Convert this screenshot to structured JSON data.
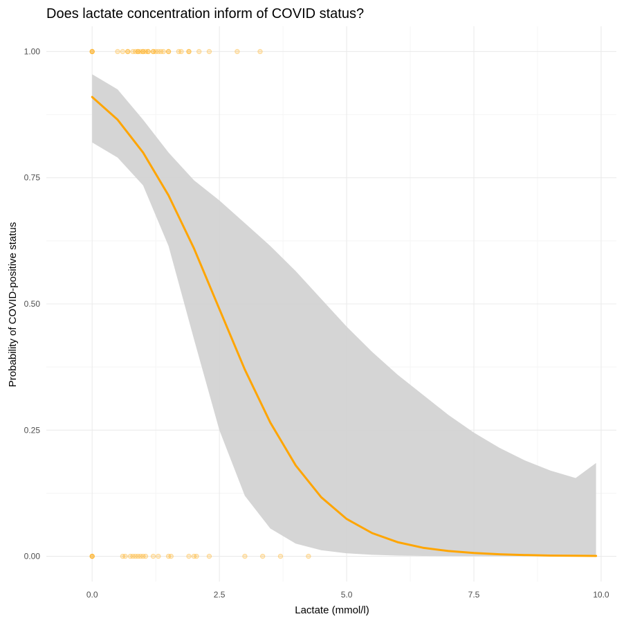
{
  "chart_data": {
    "type": "scatter",
    "title": "Does lactate concentration inform of COVID status?",
    "xlabel": "Lactate (mmol/l)",
    "ylabel": "Probability of COVID-positive status",
    "xlim": [
      -0.9,
      10.3
    ],
    "ylim": [
      -0.05,
      1.05
    ],
    "x_ticks": [
      0,
      2.5,
      5,
      7.5,
      10
    ],
    "x_tick_labels": [
      "0.0",
      "2.5",
      "5.0",
      "7.5",
      "10.0"
    ],
    "y_ticks": [
      0,
      0.25,
      0.5,
      0.75,
      1
    ],
    "y_tick_labels": [
      "0.00",
      "0.25",
      "0.50",
      "0.75",
      "1.00"
    ],
    "grid": true,
    "colors": {
      "points": "#FFA500",
      "fit_line": "#FFA500",
      "ribbon": "#D3D3D3",
      "grid_major": "#EBEBEB",
      "grid_minor": "#F5F5F5"
    },
    "points": {
      "y1_x": [
        0,
        0,
        0,
        0.5,
        0.6,
        0.7,
        0.7,
        0.8,
        0.85,
        0.9,
        0.9,
        0.95,
        1.0,
        1.0,
        1.05,
        1.1,
        1.1,
        1.2,
        1.2,
        1.25,
        1.3,
        1.35,
        1.4,
        1.5,
        1.5,
        1.7,
        1.75,
        1.9,
        1.9,
        2.1,
        2.3,
        2.85,
        3.3
      ],
      "y0_x": [
        0,
        0,
        0,
        0.6,
        0.65,
        0.75,
        0.8,
        0.85,
        0.9,
        0.95,
        1.0,
        1.05,
        1.2,
        1.3,
        1.5,
        1.55,
        1.9,
        2.0,
        2.05,
        2.3,
        3.0,
        3.35,
        3.7,
        4.25
      ]
    },
    "fit": {
      "x": [
        0,
        0.5,
        1,
        1.5,
        2,
        2.5,
        3,
        3.5,
        4,
        4.5,
        5,
        5.5,
        6,
        6.5,
        7,
        7.5,
        8,
        8.5,
        9,
        9.5,
        9.9
      ],
      "y": [
        0.91,
        0.865,
        0.8,
        0.715,
        0.61,
        0.49,
        0.37,
        0.265,
        0.18,
        0.117,
        0.074,
        0.046,
        0.028,
        0.017,
        0.0105,
        0.0065,
        0.004,
        0.0025,
        0.0015,
        0.001,
        0.0007
      ],
      "lower": [
        0.82,
        0.79,
        0.735,
        0.615,
        0.43,
        0.25,
        0.12,
        0.055,
        0.025,
        0.012,
        0.006,
        0.003,
        0.0015,
        0.0008,
        0.0004,
        0.0002,
        0.0001,
        0.0001,
        0.0001,
        0.0001,
        0.0001
      ],
      "upper": [
        0.955,
        0.925,
        0.865,
        0.8,
        0.745,
        0.705,
        0.66,
        0.615,
        0.565,
        0.51,
        0.455,
        0.405,
        0.36,
        0.32,
        0.28,
        0.245,
        0.215,
        0.19,
        0.17,
        0.155,
        0.185
      ]
    }
  }
}
